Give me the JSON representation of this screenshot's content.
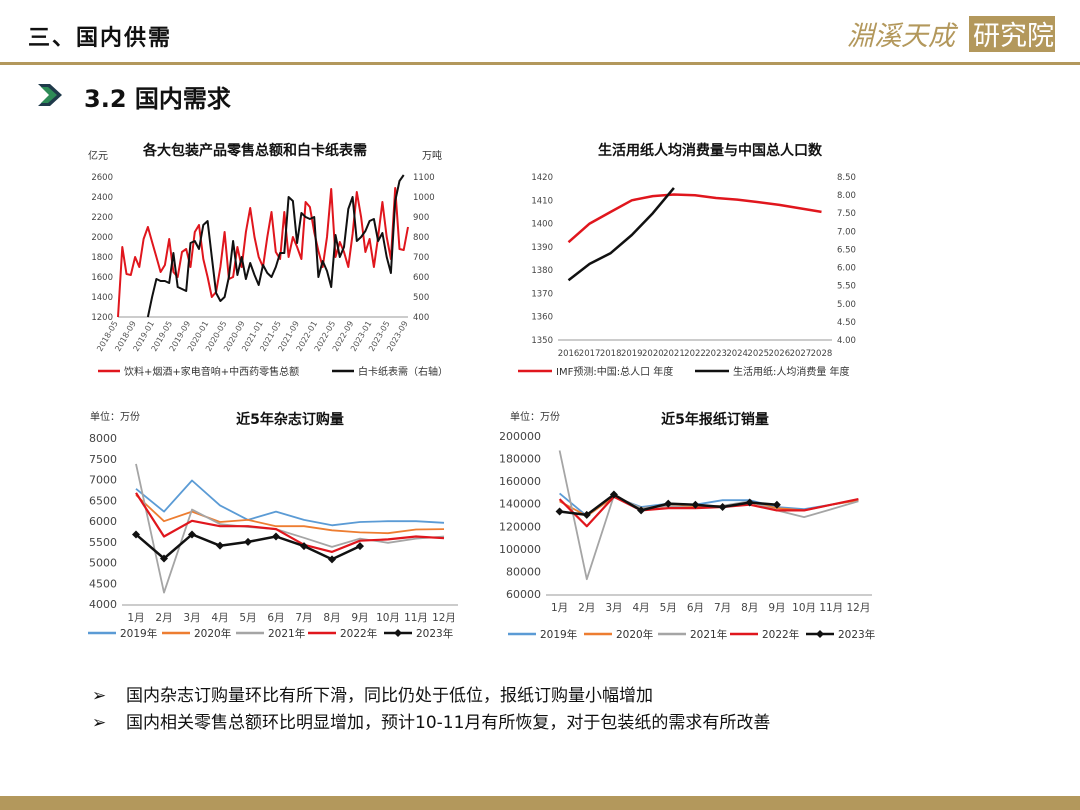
{
  "header": {
    "title": "三、国内供需",
    "logo_text": "淵溪天成研究院",
    "rule_color": "#b3985c"
  },
  "section": {
    "title": "3.2 国内需求",
    "arrow_icon": "chevron-right-icon"
  },
  "bullets": [
    {
      "mark": "➢",
      "text": "国内杂志订购量环比有所下滑，同比仍处于低位，报纸订购量小幅增加"
    },
    {
      "mark": "➢",
      "text": "国内相关零售总额环比明显增加，预计10-11月有所恢复，对于包装纸的需求有所改善"
    }
  ],
  "chart_data": [
    {
      "type": "line",
      "title": "各大包装产品零售总额和白卡纸表需",
      "ylabel": "亿元",
      "y2label": "万吨",
      "ylim": [
        1200,
        2600
      ],
      "y2lim": [
        400,
        1100
      ],
      "yticks": [
        1200,
        1400,
        1600,
        1800,
        2000,
        2200,
        2400,
        2600
      ],
      "y2ticks": [
        400,
        500,
        600,
        700,
        800,
        900,
        1000,
        1100
      ],
      "xticks": [
        "2018-05",
        "2018-09",
        "2019-01",
        "2019-05",
        "2019-09",
        "2020-01",
        "2020-05",
        "2020-09",
        "2021-01",
        "2021-05",
        "2021-09",
        "2022-01",
        "2022-05",
        "2022-09",
        "2023-01",
        "2023-05",
        "2023-09"
      ],
      "legend_position": "bottom",
      "series": [
        {
          "name": "饮料+烟酒+家电音响+中西药零售总额",
          "axis": "left",
          "color": "#e0161d",
          "values": [
            1200,
            1900,
            1630,
            1620,
            1800,
            1700,
            1980,
            2100,
            1950,
            1800,
            1650,
            1720,
            1980,
            1650,
            1600,
            1850,
            1880,
            1700,
            2050,
            2120,
            1780,
            1600,
            1400,
            1450,
            1700,
            2050,
            1580,
            1600,
            1900,
            1700,
            2050,
            2290,
            2000,
            1800,
            1700,
            2000,
            2250,
            1850,
            1780,
            2250,
            1800,
            2000,
            1900,
            1780,
            2350,
            2300,
            2050,
            1860,
            1700,
            2000,
            2480,
            1800,
            1950,
            1850,
            1700,
            2030,
            2450,
            2200,
            1850,
            1980,
            1700,
            2000,
            2350,
            2000,
            1780,
            2490,
            1880,
            1870,
            2100
          ]
        },
        {
          "name": "白卡纸表需（右轴）",
          "axis": "right",
          "color": "#111111",
          "values": [
            null,
            null,
            null,
            null,
            null,
            null,
            null,
            400,
            500,
            590,
            580,
            580,
            570,
            720,
            550,
            540,
            530,
            770,
            780,
            740,
            860,
            880,
            700,
            520,
            480,
            500,
            600,
            780,
            610,
            700,
            590,
            670,
            610,
            560,
            660,
            620,
            600,
            650,
            720,
            720,
            1000,
            980,
            770,
            920,
            900,
            890,
            900,
            600,
            680,
            630,
            550,
            810,
            700,
            750,
            940,
            1000,
            780,
            800,
            830,
            880,
            890,
            780,
            820,
            700,
            620,
            980,
            1080,
            1110
          ]
        }
      ]
    },
    {
      "type": "line",
      "title": "生活用纸人均消费量与中国总人口数",
      "ylim": [
        1350,
        1420
      ],
      "y2lim": [
        4.0,
        8.5
      ],
      "yticks": [
        1350,
        1360,
        1370,
        1380,
        1390,
        1400,
        1410,
        1420
      ],
      "y2ticks": [
        "4.00",
        "4.50",
        "5.00",
        "5.50",
        "6.00",
        "6.50",
        "7.00",
        "7.50",
        "8.00",
        "8.50"
      ],
      "categories": [
        "2016",
        "2017",
        "2018",
        "2019",
        "2020",
        "2021",
        "2022",
        "2023",
        "2024",
        "2025",
        "2026",
        "2027",
        "2028"
      ],
      "legend_position": "bottom",
      "series": [
        {
          "name": "IMF预测:中国:总人口 年度",
          "axis": "left",
          "color": "#e0161d",
          "values": [
            1392,
            1400,
            1405,
            1410,
            1411.8,
            1412.5,
            1412.2,
            1411,
            1410.3,
            1409.2,
            1408,
            1406.5,
            1405
          ]
        },
        {
          "name": "生活用纸:人均消费量 年度",
          "axis": "right",
          "color": "#111111",
          "values": [
            5.65,
            6.1,
            6.4,
            6.9,
            7.5,
            8.2,
            null,
            null,
            null,
            null,
            null,
            null,
            null
          ]
        }
      ]
    },
    {
      "type": "line",
      "title": "近5年杂志订购量",
      "unit": "单位：万份",
      "ylim": [
        4000,
        8000
      ],
      "yticks": [
        4000,
        4500,
        5000,
        5500,
        6000,
        6500,
        7000,
        7500,
        8000
      ],
      "categories": [
        "1月",
        "2月",
        "3月",
        "4月",
        "5月",
        "6月",
        "7月",
        "8月",
        "9月",
        "10月",
        "11月",
        "12月"
      ],
      "legend_position": "bottom",
      "series": [
        {
          "name": "2019年",
          "color": "#5b9bd5",
          "values": [
            6800,
            6250,
            7000,
            6400,
            6050,
            6250,
            6050,
            5920,
            6000,
            6020,
            6020,
            5980
          ]
        },
        {
          "name": "2020年",
          "color": "#ed7d31",
          "values": [
            6650,
            6020,
            6250,
            6000,
            6050,
            5900,
            5900,
            5800,
            5750,
            5730,
            5820,
            5830
          ]
        },
        {
          "name": "2021年",
          "color": "#a5a5a5",
          "values": [
            7400,
            4300,
            6300,
            5950,
            5880,
            5830,
            5620,
            5400,
            5600,
            5500,
            5600,
            5650
          ]
        },
        {
          "name": "2022年",
          "color": "#e0161d",
          "values": [
            6700,
            5650,
            6030,
            5900,
            5900,
            5830,
            5450,
            5280,
            5550,
            5580,
            5650,
            5610
          ]
        },
        {
          "name": "2023年",
          "color": "#111111",
          "marker": "diamond",
          "values": [
            5700,
            5120,
            5700,
            5430,
            5520,
            5650,
            5420,
            5100,
            5420,
            null,
            null,
            null
          ]
        }
      ]
    },
    {
      "type": "line",
      "title": "近5年报纸订销量",
      "unit": "单位：万份",
      "ylim": [
        60000,
        200000
      ],
      "yticks": [
        60000,
        80000,
        100000,
        120000,
        140000,
        160000,
        180000,
        200000
      ],
      "categories": [
        "1月",
        "2月",
        "3月",
        "4月",
        "5月",
        "6月",
        "7月",
        "8月",
        "9月",
        "10月",
        "11月",
        "12月"
      ],
      "legend_position": "bottom",
      "series": [
        {
          "name": "2019年",
          "color": "#5b9bd5",
          "values": [
            150000,
            130000,
            147000,
            138000,
            141000,
            140000,
            144000,
            144000,
            138000,
            136000,
            140000,
            144000
          ]
        },
        {
          "name": "2020年",
          "color": "#ed7d31",
          "values": [
            143000,
            130000,
            147000,
            137000,
            139000,
            138000,
            139000,
            142000,
            137000,
            135000,
            140000,
            144000
          ]
        },
        {
          "name": "2021年",
          "color": "#a5a5a5",
          "values": [
            188000,
            74000,
            148000,
            137000,
            139000,
            137000,
            139000,
            143000,
            135000,
            129000,
            136000,
            143000
          ]
        },
        {
          "name": "2022年",
          "color": "#e0161d",
          "values": [
            145000,
            121000,
            147000,
            135000,
            137000,
            137000,
            138000,
            140000,
            135000,
            135000,
            140000,
            145000
          ]
        },
        {
          "name": "2023年",
          "color": "#111111",
          "marker": "diamond",
          "values": [
            134000,
            131000,
            149000,
            135000,
            141000,
            140000,
            138000,
            142000,
            140000,
            null,
            null,
            null
          ]
        }
      ]
    }
  ]
}
